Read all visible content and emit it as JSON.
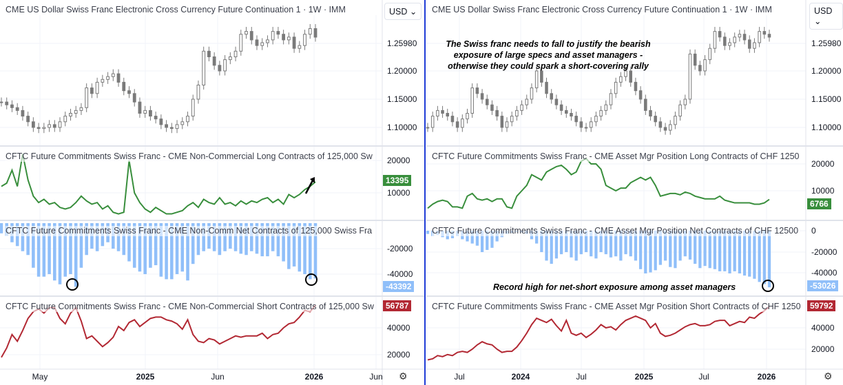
{
  "colors": {
    "candle": "#7a7a7a",
    "long": "#388e3c",
    "net": "#90bff9",
    "short": "#b22833",
    "divider": "#1f3bd6",
    "grid": "#f0f3fa"
  },
  "currency_button": "USD",
  "chart_data": [
    {
      "type": "line",
      "panes": [
        {
          "kind": "candlestick",
          "title": "CME US Dollar Swiss Franc Electronic Cross Currency Future Continuation 1 · 1W · IMM",
          "axis_ticks": [
            "1.25980",
            "1.20000",
            "1.15000",
            "1.10000"
          ],
          "last_value": "1.25980",
          "values": [
            1.145,
            1.14,
            1.135,
            1.13,
            1.12,
            1.11,
            1.1,
            1.098,
            1.1,
            1.105,
            1.1,
            1.11,
            1.12,
            1.125,
            1.13,
            1.135,
            1.17,
            1.16,
            1.18,
            1.185,
            1.19,
            1.195,
            1.18,
            1.165,
            1.16,
            1.145,
            1.125,
            1.13,
            1.12,
            1.115,
            1.105,
            1.1,
            1.098,
            1.105,
            1.11,
            1.12,
            1.15,
            1.175,
            1.235,
            1.225,
            1.21,
            1.2,
            1.22,
            1.225,
            1.235,
            1.265,
            1.27,
            1.255,
            1.245,
            1.25,
            1.255,
            1.27,
            1.265,
            1.255,
            1.26,
            1.24,
            1.245,
            1.265,
            1.275,
            1.2598
          ]
        },
        {
          "kind": "line",
          "title": "CFTC Future Commitments Swiss Franc - CME Non-Commercial Long Contracts of 125,000 Sw",
          "axis_ticks": [
            "20000",
            "10000"
          ],
          "last_value": "13395",
          "values": [
            12000,
            13000,
            17000,
            12000,
            22000,
            14000,
            9000,
            7000,
            8000,
            6500,
            7000,
            5500,
            5000,
            5500,
            7000,
            9000,
            7500,
            6500,
            7000,
            5000,
            6000,
            4000,
            3500,
            4000,
            20000,
            10000,
            7000,
            5000,
            4000,
            5500,
            4500,
            3500,
            3500,
            4000,
            4500,
            6000,
            7000,
            5500,
            8000,
            7000,
            6500,
            8500,
            6500,
            7000,
            6000,
            7500,
            6500,
            7500,
            7000,
            8000,
            8500,
            7000,
            8000,
            6500,
            9500,
            8500,
            9500,
            11000,
            12000,
            13395
          ]
        },
        {
          "kind": "bar",
          "title": "CFTC Future Commitments Swiss Franc - CME Non-Comm Net Contracts of 125,000 Swiss Fra",
          "axis_ticks": [
            "-20000",
            "-40000"
          ],
          "last_value": "-43392",
          "values": [
            -8000,
            -10000,
            -15000,
            -18000,
            -22000,
            -25000,
            -35000,
            -42000,
            -42000,
            -40000,
            -45000,
            -48000,
            -42000,
            -40000,
            -50000,
            -35000,
            -25000,
            -20000,
            -22000,
            -18000,
            -15000,
            -20000,
            -22000,
            -25000,
            -30000,
            -35000,
            -38000,
            -40000,
            -35000,
            -33000,
            -42000,
            -44000,
            -44000,
            -40000,
            -38000,
            -45000,
            -32000,
            -25000,
            -22000,
            -20000,
            -22000,
            -25000,
            -22000,
            -20000,
            -22000,
            -24000,
            -25000,
            -22000,
            -24000,
            -26000,
            -26000,
            -22000,
            -26000,
            -30000,
            -36000,
            -34000,
            -38000,
            -40000,
            -44000,
            -43392
          ]
        },
        {
          "kind": "line",
          "title": "CFTC Future Commitments Swiss Franc - CME Non-Commercial Short Contracts of 125,000 Sw",
          "axis_ticks": [
            "40000",
            "20000"
          ],
          "last_value": "56787",
          "values": [
            18000,
            25000,
            35000,
            30000,
            38000,
            47000,
            52000,
            54000,
            51000,
            55000,
            55000,
            47000,
            43000,
            51000,
            55000,
            45000,
            32000,
            34000,
            30000,
            26000,
            29000,
            33000,
            41000,
            38000,
            44000,
            46000,
            41000,
            44000,
            47000,
            48000,
            48000,
            46000,
            45000,
            43000,
            39000,
            46000,
            35000,
            30000,
            29000,
            32000,
            31000,
            28000,
            30000,
            32000,
            34000,
            33000,
            34000,
            34000,
            34000,
            36000,
            32000,
            35000,
            36000,
            40000,
            43000,
            44000,
            48000,
            53000,
            52000,
            56787
          ]
        }
      ],
      "time_ticks": [
        "May",
        "2025",
        "Jun",
        "2026",
        "Jun"
      ]
    },
    {
      "type": "line",
      "panes": [
        {
          "kind": "candlestick",
          "title": "CME US Dollar Swiss Franc Electronic Cross Currency Future Continuation 1 · 1W · IMM",
          "axis_ticks": [
            "1.25980",
            "1.20000",
            "1.15000",
            "1.10000"
          ],
          "last_value": "1.25980",
          "values": [
            1.1,
            1.12,
            1.13,
            1.125,
            1.12,
            1.11,
            1.1,
            1.115,
            1.125,
            1.17,
            1.16,
            1.15,
            1.14,
            1.13,
            1.12,
            1.1,
            1.11,
            1.12,
            1.13,
            1.14,
            1.15,
            1.17,
            1.2,
            1.18,
            1.16,
            1.15,
            1.14,
            1.13,
            1.125,
            1.12,
            1.11,
            1.1,
            1.1,
            1.11,
            1.12,
            1.13,
            1.14,
            1.16,
            1.18,
            1.19,
            1.2,
            1.18,
            1.165,
            1.15,
            1.13,
            1.12,
            1.11,
            1.1,
            1.095,
            1.105,
            1.12,
            1.14,
            1.15,
            1.23,
            1.21,
            1.2,
            1.22,
            1.24,
            1.27,
            1.26,
            1.245,
            1.25,
            1.26,
            1.265,
            1.255,
            1.24,
            1.25,
            1.27,
            1.265,
            1.2598
          ]
        },
        {
          "kind": "line",
          "title": "CFTC Future Commitments Swiss Franc - CME Asset Mgr Position Long Contracts of CHF 1250",
          "axis_ticks": [
            "20000",
            "10000"
          ],
          "last_value": "6766",
          "values": [
            3500,
            5000,
            6000,
            6500,
            6000,
            4000,
            4000,
            3500,
            8000,
            9000,
            7000,
            6500,
            7000,
            6000,
            7000,
            7000,
            4000,
            3500,
            8000,
            10000,
            12000,
            16000,
            15000,
            14000,
            17000,
            18000,
            19000,
            19500,
            18000,
            16000,
            17000,
            21000,
            22000,
            20000,
            20000,
            18000,
            12000,
            11000,
            10000,
            11000,
            11000,
            13000,
            14000,
            15000,
            14000,
            15000,
            12000,
            8000,
            8500,
            9000,
            9000,
            8500,
            9500,
            9000,
            8000,
            7500,
            7000,
            7000,
            7000,
            8000,
            6500,
            6000,
            5500,
            5500,
            5500,
            5500,
            5000,
            5000,
            5500,
            6766
          ]
        },
        {
          "kind": "bar",
          "title": "CFTC Future Commitments Swiss Franc - CME Asset Mgr Position Net Contracts of CHF 12500",
          "axis_ticks": [
            "0",
            "-20000",
            "-40000"
          ],
          "last_value": "-53026",
          "values": [
            -3000,
            -5000,
            -4000,
            -6000,
            -8000,
            -7000,
            -5000,
            -8000,
            -10000,
            -12000,
            -14000,
            -20000,
            -18000,
            -16000,
            -10000,
            -6000,
            -3000,
            -2000,
            -1000,
            -1500,
            -3000,
            -8000,
            -12000,
            -20000,
            -28000,
            -31000,
            -26000,
            -22000,
            -20000,
            -25000,
            -28000,
            -22000,
            -20000,
            -24000,
            -26000,
            -20000,
            -22000,
            -25000,
            -24000,
            -28000,
            -22000,
            -24000,
            -28000,
            -36000,
            -40000,
            -39000,
            -37000,
            -32000,
            -28000,
            -34000,
            -35000,
            -28000,
            -24000,
            -27000,
            -31000,
            -35000,
            -33000,
            -35000,
            -36000,
            -38000,
            -38000,
            -40000,
            -38000,
            -40000,
            -42000,
            -43000,
            -45000,
            -48000,
            -50000,
            -53026
          ]
        },
        {
          "kind": "line",
          "title": "CFTC Future Commitments Swiss Franc - CME Asset Mgr Position Short Contracts of CHF 1250",
          "axis_ticks": [
            "40000",
            "20000"
          ],
          "last_value": "59792",
          "values": [
            10000,
            11000,
            14000,
            13000,
            15000,
            14000,
            17000,
            18000,
            17000,
            20000,
            24000,
            27000,
            25000,
            24000,
            20000,
            17000,
            18000,
            18000,
            22000,
            28000,
            35000,
            43000,
            49000,
            47000,
            45000,
            48000,
            42000,
            37000,
            47000,
            35000,
            33000,
            35000,
            31000,
            34000,
            38000,
            43000,
            40000,
            41000,
            38000,
            43000,
            47000,
            49000,
            51000,
            49000,
            47000,
            40000,
            44000,
            35000,
            32000,
            33000,
            35000,
            38000,
            41000,
            43000,
            44000,
            42000,
            42000,
            43000,
            46000,
            47000,
            47000,
            42000,
            44000,
            46000,
            45000,
            50000,
            49000,
            53000,
            56000,
            59792
          ]
        }
      ],
      "time_ticks": [
        "Jul",
        "2024",
        "Jul",
        "2025",
        "Jul",
        "2026"
      ]
    }
  ],
  "annotations": {
    "right_price_note": "The Swiss franc needs to fall to justify the bearish exposure of large specs and asset managers - otherwise they could spark a short-covering rally",
    "right_net_note": "Record high for net-short exposure among asset managers"
  }
}
